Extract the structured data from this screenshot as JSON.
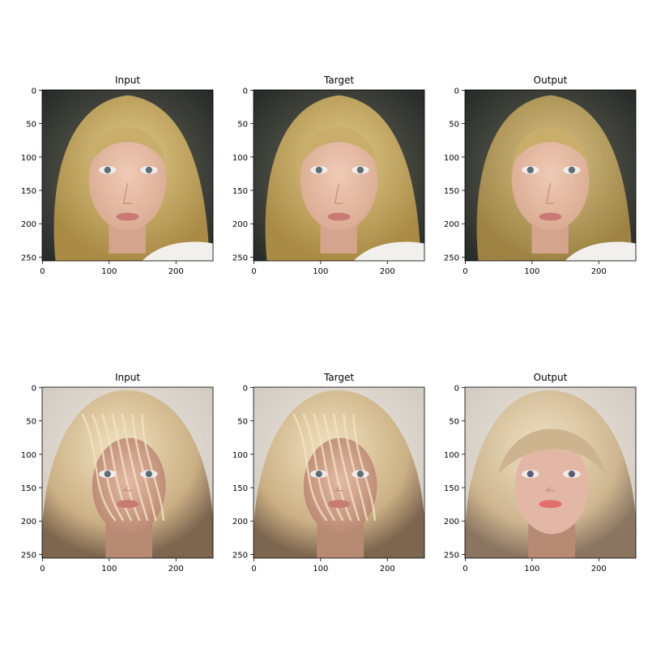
{
  "figure": {
    "panels": [
      {
        "title": "Input",
        "subject": "blonde-woman-portrait-straight-hair",
        "xticks": [
          "0",
          "100",
          "200"
        ],
        "yticks": [
          "0",
          "50",
          "100",
          "150",
          "200",
          "250"
        ]
      },
      {
        "title": "Target",
        "subject": "blonde-woman-portrait-straight-hair",
        "xticks": [
          "0",
          "100",
          "200"
        ],
        "yticks": [
          "0",
          "50",
          "100",
          "150",
          "200",
          "250"
        ]
      },
      {
        "title": "Output",
        "subject": "blonde-woman-portrait-straight-hair-generated",
        "xticks": [
          "0",
          "100",
          "200"
        ],
        "yticks": [
          "0",
          "50",
          "100",
          "150",
          "200",
          "250"
        ]
      },
      {
        "title": "Input",
        "subject": "blonde-woman-portrait-windswept-hair",
        "xticks": [
          "0",
          "100",
          "200"
        ],
        "yticks": [
          "0",
          "50",
          "100",
          "150",
          "200",
          "250"
        ]
      },
      {
        "title": "Target",
        "subject": "blonde-woman-portrait-windswept-hair",
        "xticks": [
          "0",
          "100",
          "200"
        ],
        "yticks": [
          "0",
          "50",
          "100",
          "150",
          "200",
          "250"
        ]
      },
      {
        "title": "Output",
        "subject": "blonde-woman-portrait-windswept-hair-generated",
        "xticks": [
          "0",
          "100",
          "200"
        ],
        "yticks": [
          "0",
          "50",
          "100",
          "150",
          "200",
          "250"
        ]
      }
    ],
    "axis_range": [
      0,
      256
    ],
    "colors": {
      "row1_background": "#2f3430",
      "row1_hair": "#c9ad6a",
      "row1_skin": "#e3b9a2",
      "row2_background": "#d9d4cc",
      "row2_hair": "#d8c29a",
      "row2_skin": "#c99c86",
      "eyes": "#5c6f74",
      "lips": "#c97a74"
    }
  }
}
